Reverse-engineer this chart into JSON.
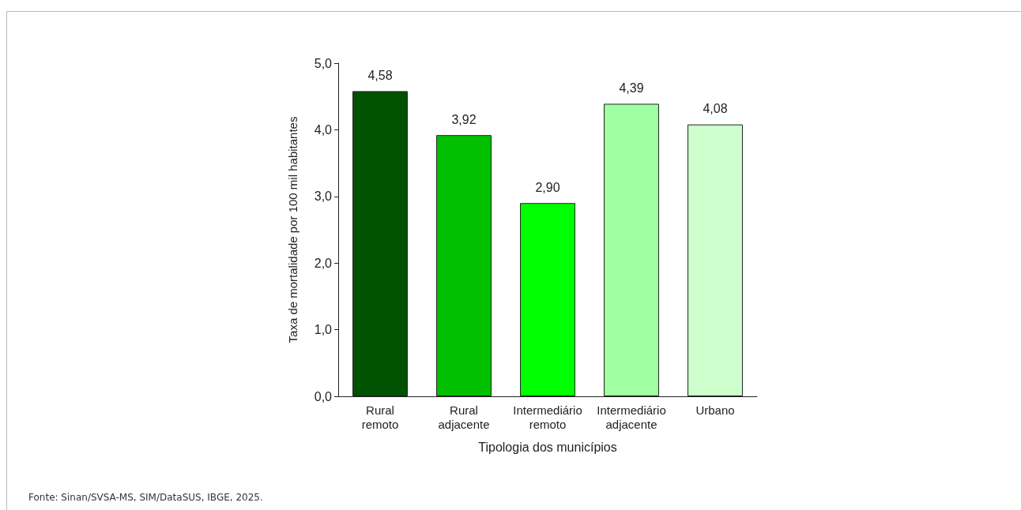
{
  "chart_data": {
    "type": "bar",
    "categories": [
      "Rural remoto",
      "Rural adjacente",
      "Intermediário remoto",
      "Intermediário adjacente",
      "Urbano"
    ],
    "values": [
      4.58,
      3.92,
      2.9,
      4.39,
      4.08
    ],
    "colors": [
      "#005200",
      "#00c000",
      "#00ff00",
      "#a0ffa0",
      "#ccffcc"
    ],
    "value_labels": [
      "4,58",
      "3,92",
      "2,90",
      "4,39",
      "4,08"
    ],
    "xlabel": "Tipologia dos municípios",
    "ylabel": "Taxa de mortalidade por 100 mil habitantes",
    "ylim": [
      0,
      5
    ],
    "yticks": [
      {
        "value": 0,
        "label": "0,0"
      },
      {
        "value": 1,
        "label": "1,0"
      },
      {
        "value": 2,
        "label": "2,0"
      },
      {
        "value": 3,
        "label": "3,0"
      },
      {
        "value": 4,
        "label": "4,0"
      },
      {
        "value": 5,
        "label": "5,0"
      }
    ],
    "grid": false,
    "annotations": [
      "Fonte: Sinan/SVSA-MS, SIM/DataSUS, IBGE, 2025."
    ]
  }
}
